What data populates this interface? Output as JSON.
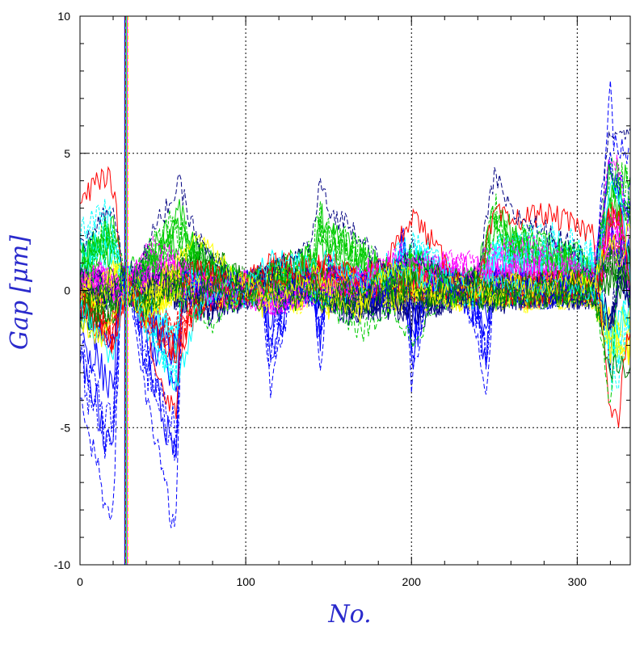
{
  "chart_data": {
    "type": "line",
    "xlabel": "No.",
    "ylabel": "Gap [μm]",
    "xlim": [
      0,
      332
    ],
    "ylim": [
      -10,
      10
    ],
    "x_ticks": [
      0,
      100,
      200,
      300
    ],
    "y_ticks": [
      -10,
      -5,
      0,
      5,
      10
    ],
    "x_tick_labels": [
      "0",
      "100",
      "200",
      "300"
    ],
    "y_tick_labels": [
      "-10",
      "-5",
      "0",
      "5",
      "10"
    ],
    "grid": true,
    "grid_style": "dotted",
    "legend": "none",
    "colors": [
      "#0000ff",
      "#ff0000",
      "#00cc00",
      "#00ffff",
      "#ff00ff",
      "#ffff00",
      "#000080",
      "#008000"
    ],
    "spike": {
      "x": 28,
      "range": [
        -10,
        10
      ]
    },
    "series": [
      {
        "x": [
          0,
          5,
          10,
          15,
          20,
          25,
          30,
          40,
          50,
          55,
          58,
          62,
          70,
          80,
          90,
          100,
          110,
          115,
          120,
          130,
          140,
          145,
          150,
          160,
          170,
          180,
          190,
          195,
          200,
          205,
          210,
          220,
          230,
          240,
          245,
          250,
          260,
          270,
          280,
          290,
          300,
          310,
          320,
          322,
          326,
          330,
          332
        ],
        "y": [
          -3.5,
          -5.5,
          -6.0,
          -8.0,
          -8.0,
          0.5,
          0.3,
          -4.0,
          -6.5,
          -8.4,
          -8.2,
          0.5,
          0.2,
          0.1,
          0.0,
          0.1,
          0.4,
          -4.0,
          -2.0,
          0.3,
          0.4,
          -2.8,
          0.8,
          0.2,
          0.4,
          -0.2,
          0.4,
          2.5,
          -3.5,
          -2.0,
          0.4,
          0.2,
          0.0,
          -1.5,
          -4.0,
          0.5,
          0.1,
          0.2,
          0.0,
          0.1,
          0.2,
          0.1,
          7.3,
          5.5,
          5.2,
          4.8,
          5.0
        ]
      },
      {
        "x": [
          0,
          5,
          10,
          15,
          20,
          25,
          30,
          40,
          50,
          58,
          62,
          70,
          80,
          90,
          100,
          110,
          120,
          130,
          140,
          150,
          160,
          170,
          180,
          190,
          200,
          210,
          220,
          230,
          240,
          250,
          260,
          270,
          280,
          290,
          300,
          310,
          320,
          325,
          330,
          332
        ],
        "y": [
          3.2,
          3.5,
          4.0,
          4.2,
          3.8,
          1.0,
          0.5,
          -1.5,
          -3.5,
          -4.5,
          0.3,
          0.8,
          0.6,
          0.2,
          0.0,
          0.2,
          0.4,
          0.5,
          0.3,
          0.4,
          0.6,
          0.5,
          0.8,
          1.5,
          2.8,
          2.0,
          1.0,
          0.2,
          0.0,
          2.8,
          2.5,
          2.7,
          2.8,
          2.6,
          2.3,
          2.1,
          -4.5,
          -4.8,
          -1.5,
          -2.0
        ]
      },
      {
        "x": [
          0,
          10,
          20,
          28,
          40,
          50,
          60,
          70,
          80,
          90,
          100,
          110,
          120,
          130,
          140,
          150,
          160,
          170,
          180,
          190,
          200,
          210,
          220,
          230,
          240,
          250,
          260,
          270,
          280,
          290,
          300,
          310,
          320,
          326,
          332
        ],
        "y": [
          1.0,
          0.5,
          -0.5,
          0.8,
          1.2,
          0.6,
          -0.3,
          -0.8,
          -1.2,
          -0.5,
          0.0,
          0.5,
          0.8,
          0.5,
          0.0,
          -0.5,
          -1.0,
          -1.5,
          -1.0,
          -0.8,
          -1.8,
          -1.0,
          -0.5,
          0.0,
          0.2,
          -0.5,
          -0.3,
          0.0,
          0.2,
          0.0,
          -0.2,
          0.1,
          -4.2,
          2.5,
          -0.5
        ]
      },
      {
        "x": [
          0,
          10,
          20,
          28,
          40,
          50,
          58,
          70,
          80,
          90,
          100,
          110,
          120,
          130,
          140,
          150,
          160,
          170,
          180,
          190,
          200,
          210,
          220,
          230,
          240,
          250,
          260,
          270,
          280,
          290,
          300,
          310,
          320,
          326,
          332
        ],
        "y": [
          -0.5,
          -1.5,
          -2.8,
          0.5,
          -1.5,
          -2.5,
          -3.5,
          -0.8,
          -0.2,
          0.1,
          0.0,
          0.8,
          1.2,
          1.0,
          0.8,
          1.2,
          0.6,
          0.3,
          0.5,
          0.8,
          0.6,
          0.3,
          0.5,
          0.2,
          0.1,
          0.3,
          0.2,
          0.0,
          0.1,
          0.3,
          0.2,
          0.0,
          3.8,
          3.5,
          0.5
        ]
      },
      {
        "x": [
          0,
          10,
          20,
          28,
          40,
          50,
          60,
          70,
          80,
          90,
          100,
          110,
          120,
          130,
          140,
          150,
          160,
          170,
          180,
          190,
          200,
          210,
          220,
          230,
          240,
          250,
          260,
          270,
          280,
          290,
          300,
          310,
          320,
          326,
          332
        ],
        "y": [
          0.5,
          0.8,
          0.3,
          -0.2,
          1.8,
          1.5,
          1.0,
          0.5,
          0.2,
          0.0,
          0.1,
          -0.3,
          -0.6,
          -0.2,
          0.4,
          0.3,
          0.1,
          0.6,
          1.0,
          1.3,
          1.2,
          1.0,
          1.1,
          1.2,
          1.0,
          1.4,
          1.5,
          1.6,
          1.5,
          1.3,
          1.0,
          0.8,
          4.8,
          4.5,
          1.5
        ]
      },
      {
        "x": [
          0,
          10,
          20,
          28,
          40,
          50,
          60,
          70,
          80,
          90,
          100,
          110,
          120,
          130,
          140,
          150,
          160,
          170,
          180,
          190,
          200,
          210,
          220,
          230,
          240,
          250,
          260,
          270,
          280,
          290,
          300,
          310,
          320,
          326,
          332
        ],
        "y": [
          -1.0,
          -1.8,
          -1.2,
          0.2,
          -1.0,
          0.5,
          1.0,
          2.0,
          1.5,
          0.8,
          0.2,
          0.0,
          -0.4,
          0.2,
          0.6,
          0.2,
          -0.5,
          -0.8,
          0.3,
          0.8,
          0.4,
          -0.2,
          0.0,
          0.3,
          0.0,
          -0.3,
          0.2,
          0.1,
          0.0,
          0.2,
          0.4,
          0.2,
          2.0,
          1.0,
          2.5
        ]
      },
      {
        "x": [
          0,
          10,
          20,
          28,
          40,
          50,
          60,
          70,
          80,
          90,
          100,
          110,
          120,
          130,
          140,
          145,
          150,
          160,
          170,
          180,
          190,
          200,
          210,
          220,
          230,
          240,
          250,
          260,
          270,
          280,
          290,
          300,
          310,
          320,
          326,
          332
        ],
        "y": [
          1.5,
          2.5,
          3.2,
          -0.3,
          1.5,
          2.8,
          3.8,
          2.0,
          1.0,
          0.5,
          0.0,
          0.4,
          0.8,
          1.2,
          1.8,
          4.0,
          2.8,
          2.5,
          2.0,
          1.0,
          0.5,
          1.5,
          1.0,
          0.3,
          0.0,
          0.5,
          4.2,
          2.8,
          2.5,
          2.2,
          1.8,
          1.5,
          0.5,
          6.0,
          5.8,
          5.5
        ]
      },
      {
        "x": [
          0,
          10,
          20,
          28,
          40,
          50,
          60,
          70,
          80,
          90,
          100,
          110,
          120,
          130,
          140,
          150,
          160,
          170,
          180,
          190,
          200,
          210,
          220,
          230,
          240,
          250,
          260,
          270,
          280,
          290,
          300,
          310,
          320,
          326,
          332
        ],
        "y": [
          0.2,
          -0.3,
          0.6,
          0.4,
          -0.6,
          -0.2,
          0.4,
          -0.3,
          0.2,
          -0.1,
          0.0,
          -0.5,
          0.6,
          -0.4,
          0.3,
          -0.6,
          0.5,
          -0.2,
          0.3,
          -0.5,
          0.4,
          -0.3,
          0.2,
          -0.4,
          0.3,
          -0.2,
          0.1,
          -0.3,
          0.2,
          -0.1,
          0.1,
          -0.2,
          -3.0,
          -2.5,
          -3.2
        ]
      }
    ]
  }
}
